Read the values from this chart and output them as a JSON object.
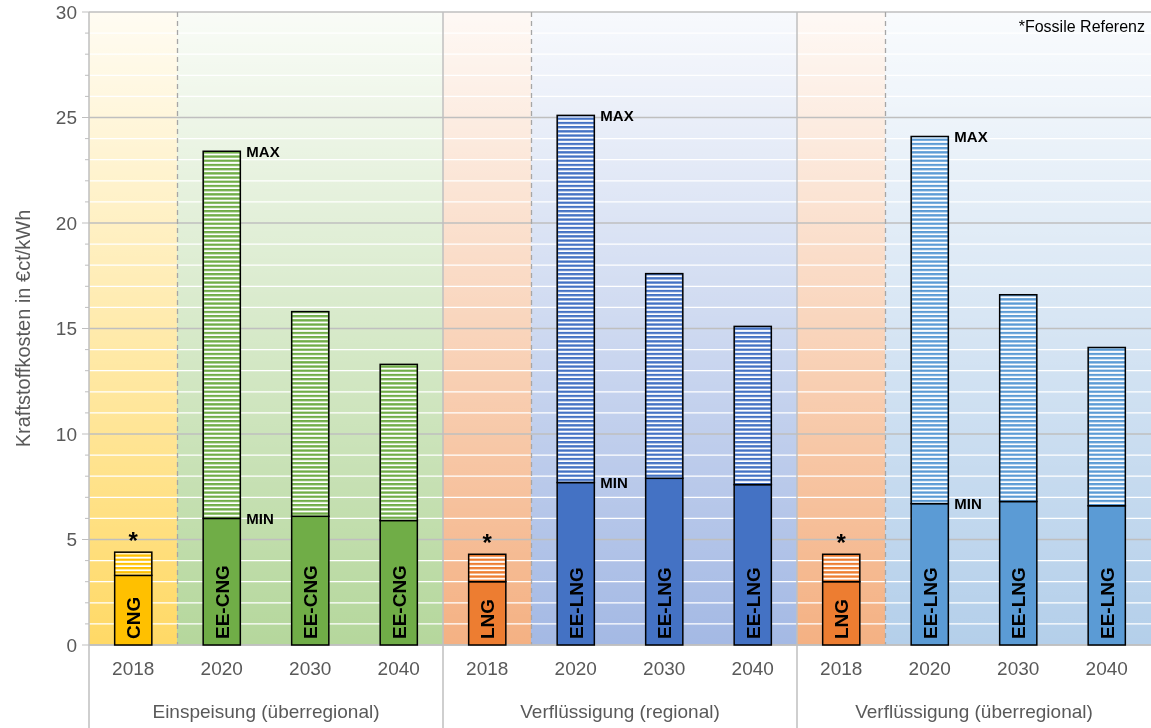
{
  "chart_data": {
    "type": "bar",
    "stacked": true,
    "ylabel": "Kraftstoffkosten in €ct/kWh",
    "categories": [
      "2018",
      "2020",
      "2030",
      "2040",
      "2018",
      "2020",
      "2030",
      "2040",
      "2018",
      "2020",
      "2030",
      "2040"
    ],
    "series": [
      {
        "colors": [
          "#ffc000",
          "#70ad47",
          "#70ad47",
          "#70ad47",
          "#ed7d31",
          "#4472c4",
          "#4472c4",
          "#4472c4",
          "#ed7d31",
          "#5b9bd5",
          "#5b9bd5",
          "#5b9bd5"
        ],
        "values": [
          3.3,
          6.0,
          6.1,
          5.9,
          3.0,
          7.7,
          7.9,
          7.6,
          3.0,
          6.7,
          6.8,
          6.6
        ],
        "value_labels": [
          "CNG",
          "EE-CNG",
          "EE-CNG",
          "EE-CNG",
          "LNG",
          "EE-LNG",
          "EE-LNG",
          "EE-LNG",
          "LNG",
          "EE-LNG",
          "EE-LNG",
          "EE-LNG"
        ]
      },
      {
        "colors": [
          "#ffc000",
          "#70ad47",
          "#70ad47",
          "#70ad47",
          "#ed7d31",
          "#4472c4",
          "#4472c4",
          "#4472c4",
          "#ed7d31",
          "#5b9bd5",
          "#5b9bd5",
          "#5b9bd5"
        ],
        "values": [
          1.1,
          17.4,
          9.7,
          7.4,
          1.3,
          17.4,
          9.7,
          7.5,
          1.3,
          17.4,
          9.8,
          7.5
        ],
        "value_labels": [
          "*",
          null,
          null,
          null,
          "*",
          null,
          null,
          null,
          "*",
          null,
          null,
          null
        ]
      }
    ],
    "ylim": [
      0,
      30
    ],
    "yticks": [
      0,
      {
        "value": 1,
        "label": null
      },
      {
        "value": 2,
        "label": null
      },
      {
        "value": 3,
        "label": null
      },
      {
        "value": 4,
        "label": null
      },
      5,
      {
        "value": 6,
        "label": null
      },
      {
        "value": 7,
        "label": null
      },
      {
        "value": 8,
        "label": null
      },
      {
        "value": 9,
        "label": null
      },
      10,
      {
        "value": 11,
        "label": null
      },
      {
        "value": 12,
        "label": null
      },
      {
        "value": 13,
        "label": null
      },
      {
        "value": 14,
        "label": null
      },
      15,
      {
        "value": 16,
        "label": null
      },
      {
        "value": 17,
        "label": null
      },
      {
        "value": 18,
        "label": null
      },
      {
        "value": 19,
        "label": null
      },
      20,
      {
        "value": 21,
        "label": null
      },
      {
        "value": 22,
        "label": null
      },
      {
        "value": 23,
        "label": null
      },
      {
        "value": 24,
        "label": null
      },
      25,
      {
        "value": 26,
        "label": null
      },
      {
        "value": 27,
        "label": null
      },
      {
        "value": 28,
        "label": null
      },
      {
        "value": 29,
        "label": null
      },
      30
    ],
    "grid": "y",
    "annotations": [
      "Einspeisung (überregional)",
      "Verflüssigung (regional)",
      "Verflüssigung (überregional)",
      "MAX",
      "MIN",
      "MAX",
      "MIN",
      "MAX",
      "MIN",
      "*Fossile Referenz"
    ]
  }
}
